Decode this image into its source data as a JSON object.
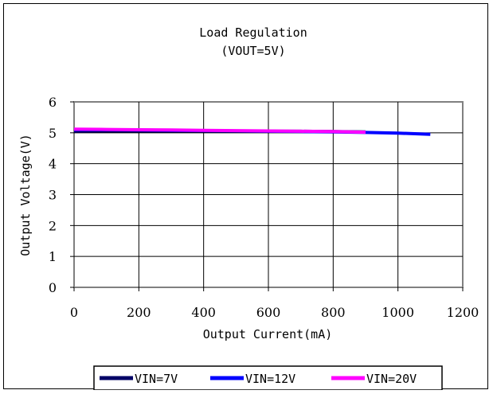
{
  "chart_data": {
    "type": "line",
    "title": "Load Regulation",
    "subtitle": "(VOUT=5V)",
    "xlabel": "Output Current(mA)",
    "ylabel": "Output Voltage(V)",
    "xlim": [
      0,
      1200
    ],
    "ylim": [
      0,
      6
    ],
    "xticks": [
      "0",
      "200",
      "400",
      "600",
      "800",
      "1000",
      "1200"
    ],
    "yticks": [
      "0",
      "1",
      "2",
      "3",
      "4",
      "5",
      "6"
    ],
    "grid": true,
    "legend_position": "bottom",
    "series": [
      {
        "name": "VIN=7V",
        "color": "#000066",
        "x": [
          0,
          100,
          200,
          300,
          400,
          500,
          600,
          700,
          800,
          900
        ],
        "y": [
          5.05,
          5.06,
          5.06,
          5.06,
          5.06,
          5.06,
          5.05,
          5.05,
          5.04,
          5.03
        ]
      },
      {
        "name": "VIN=12V",
        "color": "#0000ff",
        "x": [
          0,
          100,
          200,
          300,
          400,
          500,
          600,
          700,
          800,
          900,
          1000,
          1100
        ],
        "y": [
          5.1,
          5.1,
          5.09,
          5.08,
          5.07,
          5.06,
          5.05,
          5.04,
          5.03,
          5.01,
          4.99,
          4.95
        ]
      },
      {
        "name": "VIN=20V",
        "color": "#ff00ff",
        "x": [
          0,
          100,
          200,
          300,
          400,
          500,
          600,
          700,
          800,
          900
        ],
        "y": [
          5.12,
          5.11,
          5.1,
          5.09,
          5.08,
          5.07,
          5.06,
          5.05,
          5.04,
          5.02
        ]
      }
    ]
  }
}
